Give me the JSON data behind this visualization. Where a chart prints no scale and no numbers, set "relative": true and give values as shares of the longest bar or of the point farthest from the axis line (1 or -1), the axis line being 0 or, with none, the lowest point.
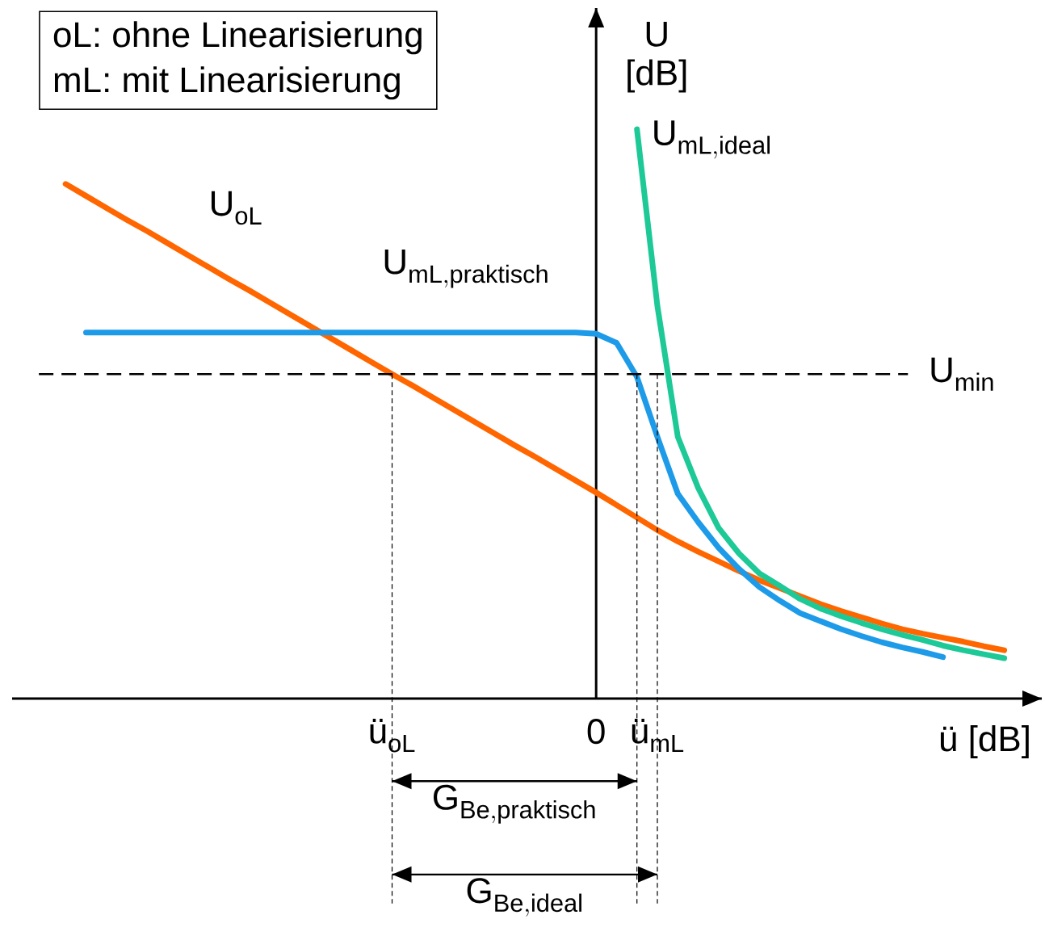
{
  "chart_data": {
    "type": "line",
    "relative": true,
    "grid": "x",
    "xlabel": "ü  [dB]",
    "ylabel": "U [dB]",
    "categories": [
      null,
      null,
      null,
      null,
      null,
      null,
      null,
      null,
      null,
      null,
      null,
      null,
      null,
      null,
      null,
      null,
      "ü$_{oL}$",
      null,
      null,
      null,
      null,
      null,
      null,
      null,
      null,
      null,
      "0",
      null,
      null,
      "ü$_{mL}$",
      null,
      null,
      null,
      null,
      null,
      null,
      null,
      null,
      null,
      null,
      null,
      null,
      null,
      null,
      null,
      null,
      null
    ],
    "series": [
      {
        "name": "U_{\\mathrm{oL}}",
        "color": "#ff6600",
        "values": [
          0.904,
          0.883,
          0.862,
          0.841,
          0.821,
          0.8,
          0.779,
          0.758,
          0.737,
          0.717,
          0.696,
          0.675,
          0.654,
          0.633,
          0.612,
          0.591,
          0.57,
          0.55,
          0.529,
          0.508,
          0.487,
          0.466,
          0.445,
          0.425,
          0.404,
          0.383,
          0.362,
          0.34,
          0.318,
          0.296,
          0.276,
          0.258,
          0.241,
          0.224,
          0.208,
          0.194,
          0.18,
          0.166,
          0.154,
          0.143,
          0.132,
          0.122,
          0.114,
          0.107,
          0.1,
          0.092,
          0.085
        ]
      },
      {
        "name": "U_{\\mathrm{mL,praktisch}}",
        "color": "#1e9be8",
        "values": [
          null,
          0.643,
          0.643,
          0.643,
          0.643,
          0.643,
          0.643,
          0.643,
          0.643,
          0.643,
          0.643,
          0.643,
          0.643,
          0.643,
          0.643,
          0.643,
          0.643,
          0.643,
          0.643,
          0.643,
          0.643,
          0.643,
          0.643,
          0.643,
          0.643,
          0.643,
          0.641,
          0.625,
          0.565,
          0.46,
          0.36,
          0.31,
          0.265,
          0.228,
          0.196,
          0.172,
          0.15,
          0.136,
          0.122,
          0.11,
          0.099,
          0.09,
          0.082,
          0.073,
          null,
          null,
          null
        ]
      },
      {
        "name": "U_{\\mathrm{mL,ideal}}",
        "color": "#1dc996",
        "values": [
          null,
          null,
          null,
          null,
          null,
          null,
          null,
          null,
          null,
          null,
          null,
          null,
          null,
          null,
          null,
          null,
          null,
          null,
          null,
          null,
          null,
          null,
          null,
          null,
          null,
          null,
          null,
          null,
          1.0,
          0.69,
          0.46,
          0.37,
          0.3,
          0.255,
          0.22,
          0.198,
          0.175,
          0.158,
          0.145,
          0.133,
          0.122,
          0.112,
          0.103,
          0.093,
          0.085,
          0.078,
          0.071
        ]
      }
    ],
    "ref_lines": [
      {
        "axis": "y",
        "value": 0.57,
        "label": "U_{\\mathrm{min}}",
        "line_style": "dashed"
      }
    ],
    "annotations": [
      "oL:  ohne Linearisierung",
      "mL: mit Linearisierung",
      "G_{\\mathrm{Be,praktisch}}",
      "G_{\\mathrm{Be,ideal}}"
    ]
  }
}
